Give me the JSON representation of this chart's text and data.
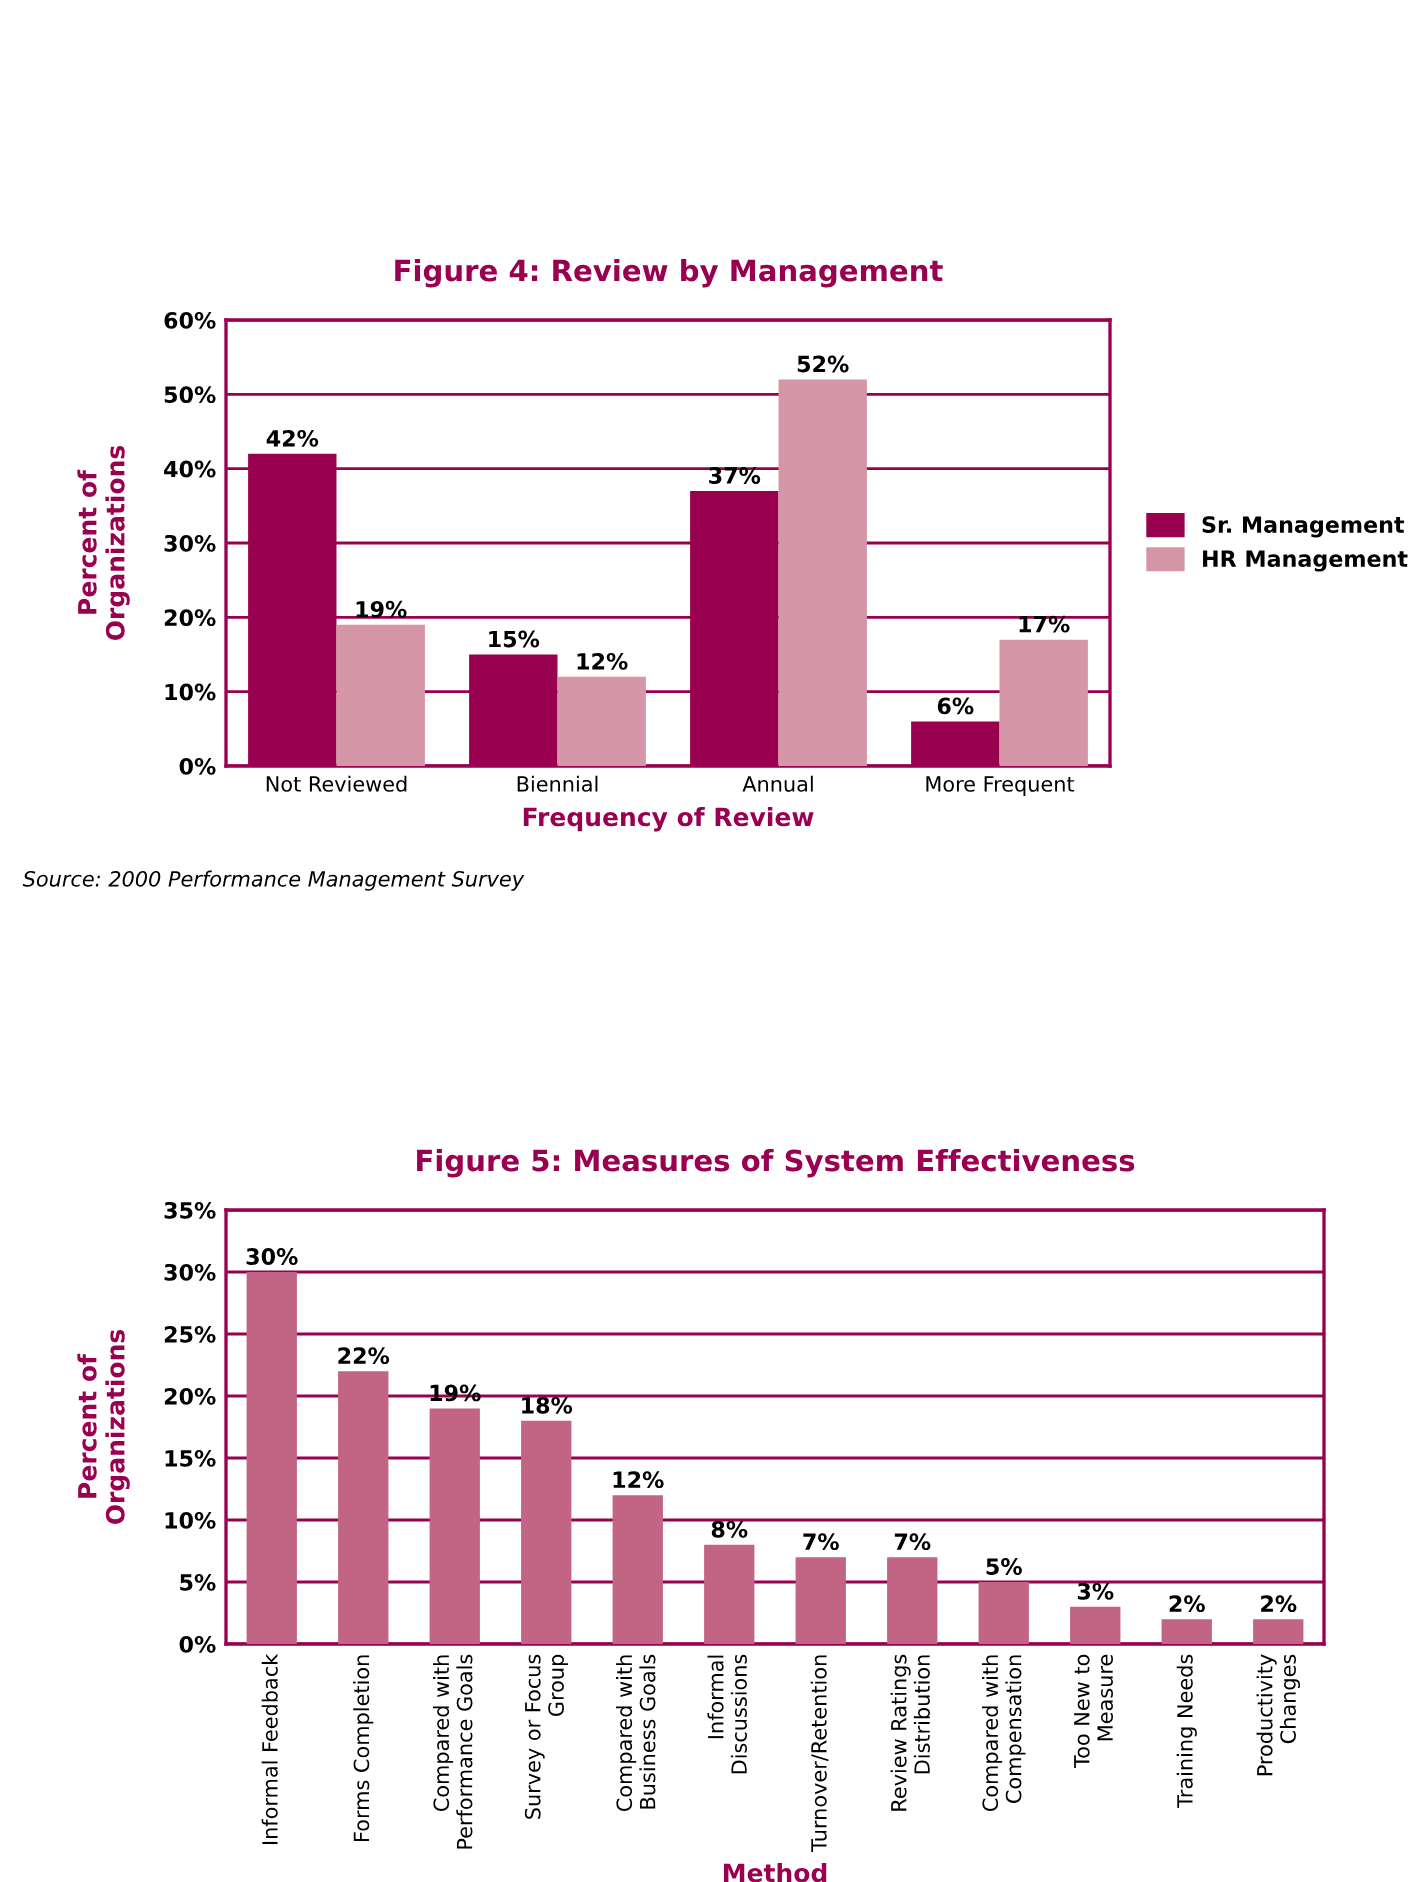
{
  "chart_data": [
    {
      "type": "bar",
      "title": "Figure 4: Review by Management",
      "xlabel": "Frequency of Review",
      "ylabel": "Percent of\nOrganizations",
      "categories": [
        "Not Reviewed",
        "Biennial",
        "Annual",
        "More Frequent"
      ],
      "series": [
        {
          "name": "Sr. Management",
          "color": "#990050",
          "values": [
            42,
            15,
            37,
            6
          ],
          "value_labels": [
            "42%",
            "15%",
            "37%",
            "6%"
          ]
        },
        {
          "name": "HR Management",
          "color": "#d597a8",
          "values": [
            19,
            12,
            52,
            17
          ],
          "value_labels": [
            "19%",
            "12%",
            "52%",
            "17%"
          ]
        }
      ],
      "ylim": [
        0,
        60
      ],
      "yticks": [
        {
          "value": 0,
          "label": "0%"
        },
        {
          "value": 10,
          "label": "10%"
        },
        {
          "value": 20,
          "label": "20%"
        },
        {
          "value": 30,
          "label": "30%"
        },
        {
          "value": 40,
          "label": "40%"
        },
        {
          "value": 50,
          "label": "50%"
        },
        {
          "value": 60,
          "label": "60%"
        }
      ],
      "grid": "y",
      "legend": "right",
      "annotations": [
        "Source: 2000 Performance Management Survey"
      ]
    },
    {
      "type": "bar",
      "title": "Figure 5: Measures of System Effectiveness",
      "xlabel": "Method",
      "ylabel": "Percent of\nOrganizations",
      "categories": [
        "Informal Feedback",
        "Forms Completion",
        "Compared with\nPerformance Goals",
        "Survey or Focus\nGroup",
        "Compared with\nBusiness Goals",
        "Informal\nDiscussions",
        "Turnover/Retention",
        "Review Ratings\nDistribution",
        "Compared with\nCompensation",
        "Too New to\nMeasure",
        "Training Needs",
        "Productivity\nChanges"
      ],
      "series": [
        {
          "color": "#c26584",
          "values": [
            30,
            22,
            19,
            18,
            12,
            8,
            7,
            7,
            5,
            3,
            2,
            2
          ],
          "value_labels": [
            "30%",
            "22%",
            "19%",
            "18%",
            "12%",
            "8%",
            "7%",
            "7%",
            "5%",
            "3%",
            "2%",
            "2%"
          ]
        }
      ],
      "ylim": [
        0,
        35
      ],
      "yticks": [
        {
          "value": 0,
          "label": "0%"
        },
        {
          "value": 5,
          "label": "5%"
        },
        {
          "value": 10,
          "label": "10%"
        },
        {
          "value": 15,
          "label": "15%"
        },
        {
          "value": 20,
          "label": "20%"
        },
        {
          "value": 25,
          "label": "25%"
        },
        {
          "value": 30,
          "label": "30%"
        },
        {
          "value": 35,
          "label": "35%"
        }
      ],
      "grid": "y",
      "legend": false
    }
  ]
}
